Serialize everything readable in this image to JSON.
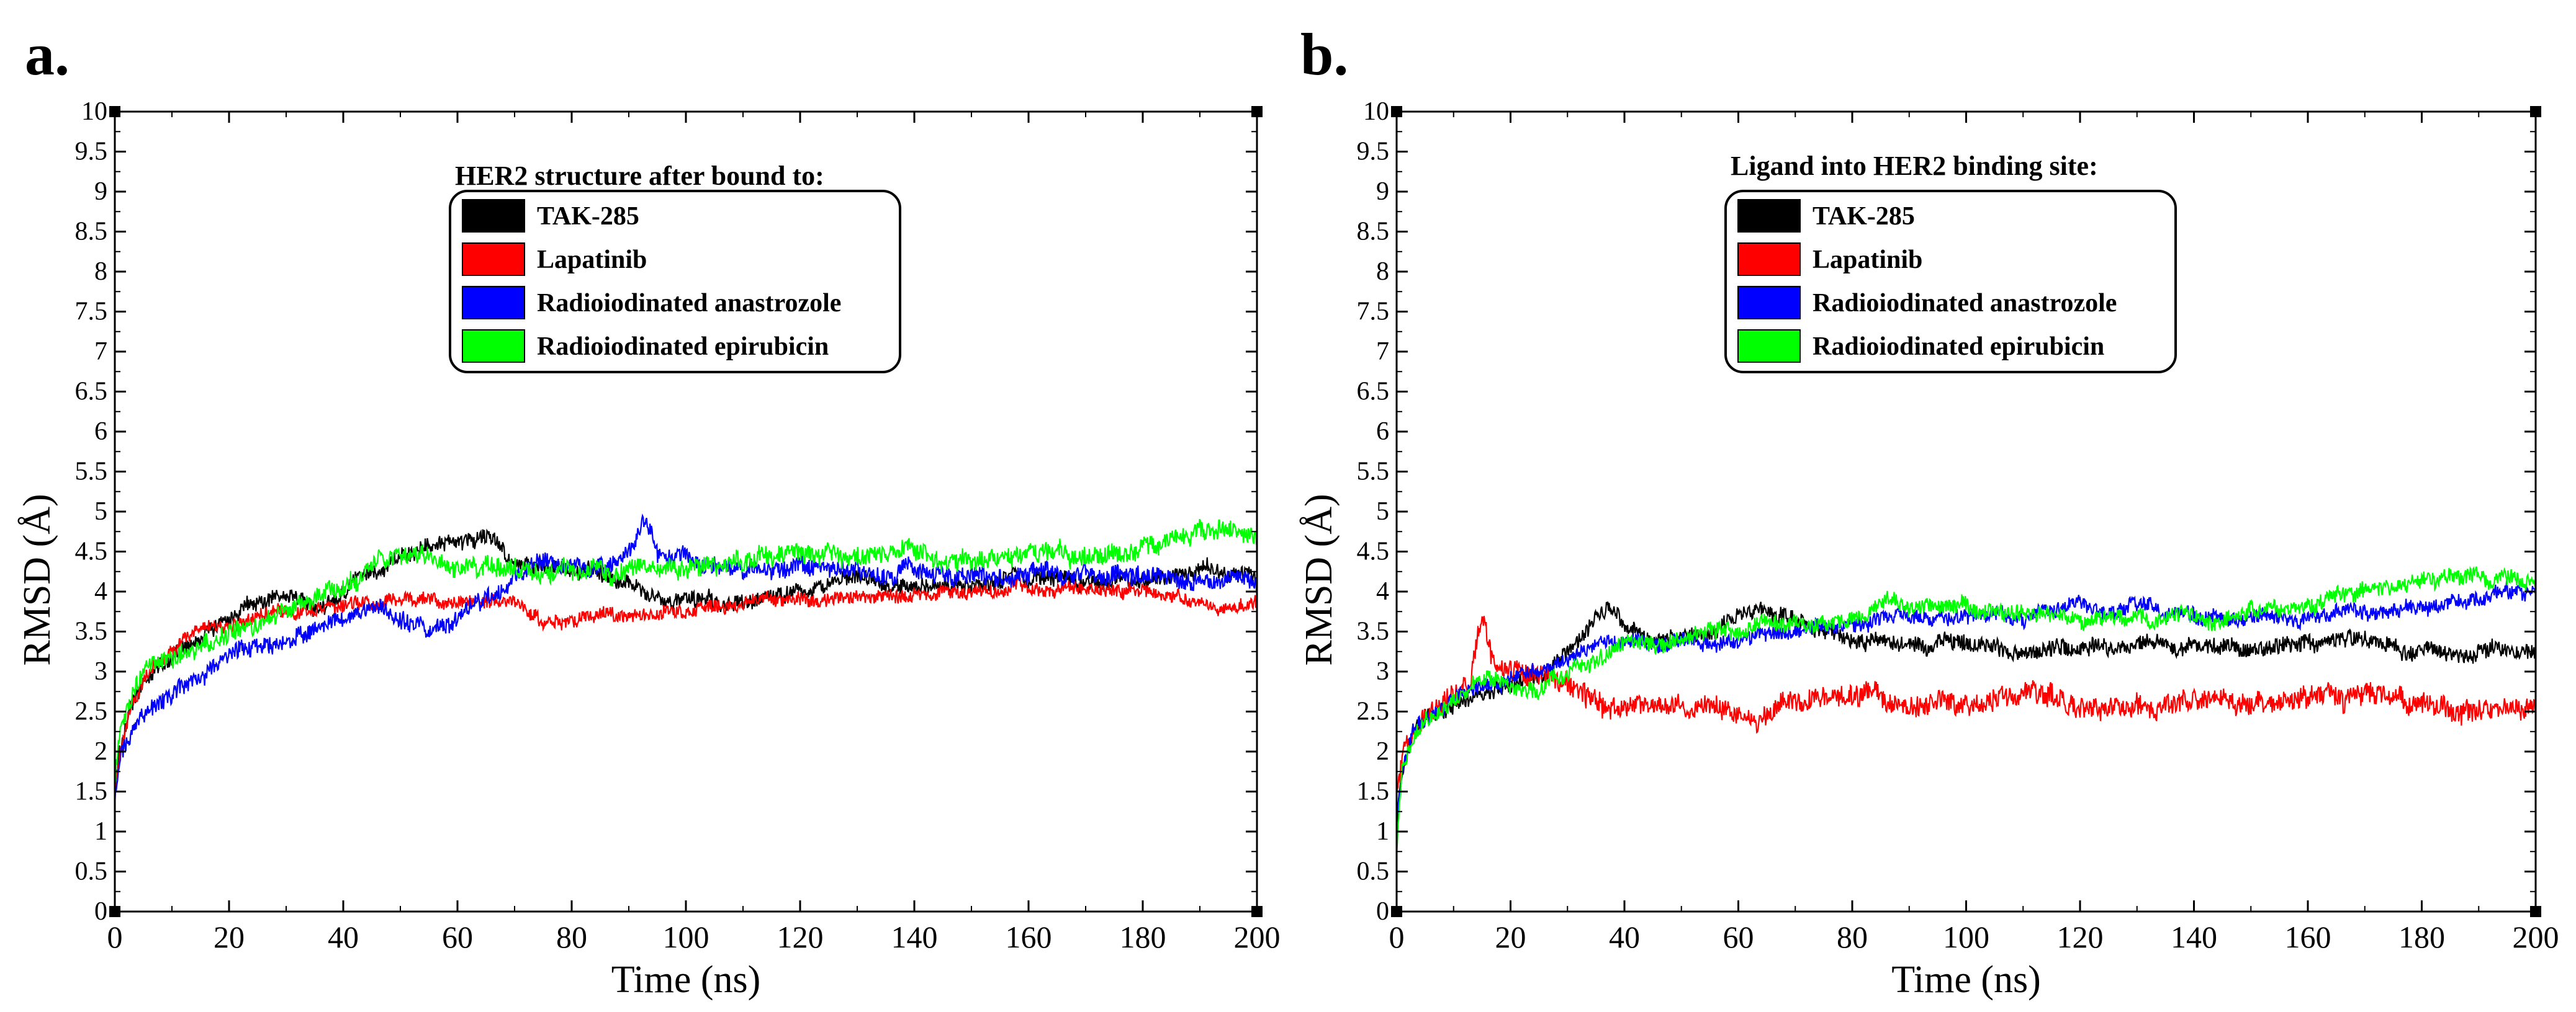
{
  "panels": [
    {
      "label": "a."
    },
    {
      "label": "b."
    }
  ],
  "colors": {
    "TAK-285": "#000000",
    "Lapatinib": "#ff0000",
    "Radioiodinated anastrozole": "#0000ff",
    "Radioiodinated epirubicin": "#00ff00"
  },
  "chart_data": [
    {
      "type": "line",
      "panel": "a.",
      "legend_title": "HER2 structure after bound to:",
      "legend_position": "top-center",
      "xlabel": "Time (ns)",
      "ylabel": "RMSD (Å)",
      "xlim": [
        0,
        200
      ],
      "ylim": [
        0,
        10
      ],
      "xticks": [
        "0",
        "20",
        "40",
        "60",
        "80",
        "100",
        "120",
        "140",
        "160",
        "180",
        "200"
      ],
      "yticks": [
        "0",
        "0.5",
        "1",
        "1.5",
        "2",
        "2.5",
        "3",
        "3.5",
        "4",
        "4.5",
        "5",
        "5.5",
        "6",
        "6.5",
        "7",
        "7.5",
        "8",
        "8.5",
        "9",
        "9.5",
        "10"
      ],
      "series": [
        {
          "name": "TAK-285",
          "color": "#000000",
          "noise": 0.12,
          "points": [
            [
              0,
              1.5
            ],
            [
              1,
              2.1
            ],
            [
              3,
              2.6
            ],
            [
              5,
              2.9
            ],
            [
              10,
              3.2
            ],
            [
              15,
              3.5
            ],
            [
              20,
              3.7
            ],
            [
              25,
              3.9
            ],
            [
              30,
              4.0
            ],
            [
              35,
              3.8
            ],
            [
              40,
              4.0
            ],
            [
              45,
              4.2
            ],
            [
              50,
              4.4
            ],
            [
              55,
              4.6
            ],
            [
              60,
              4.6
            ],
            [
              65,
              4.7
            ],
            [
              70,
              4.3
            ],
            [
              75,
              4.3
            ],
            [
              80,
              4.2
            ],
            [
              85,
              4.3
            ],
            [
              90,
              4.1
            ],
            [
              95,
              4.0
            ],
            [
              100,
              3.9
            ],
            [
              105,
              3.8
            ],
            [
              110,
              3.9
            ],
            [
              115,
              3.9
            ],
            [
              120,
              4.0
            ],
            [
              125,
              4.0
            ],
            [
              130,
              4.1
            ],
            [
              140,
              4.0
            ],
            [
              150,
              4.1
            ],
            [
              160,
              4.2
            ],
            [
              170,
              4.2
            ],
            [
              180,
              4.2
            ],
            [
              190,
              4.3
            ],
            [
              200,
              4.3
            ]
          ]
        },
        {
          "name": "Lapatinib",
          "color": "#ff0000",
          "noise": 0.1,
          "points": [
            [
              0,
              1.5
            ],
            [
              1,
              2.1
            ],
            [
              3,
              2.6
            ],
            [
              5,
              2.9
            ],
            [
              10,
              3.3
            ],
            [
              15,
              3.6
            ],
            [
              20,
              3.6
            ],
            [
              25,
              3.7
            ],
            [
              30,
              3.8
            ],
            [
              40,
              3.8
            ],
            [
              50,
              3.9
            ],
            [
              60,
              3.85
            ],
            [
              70,
              3.9
            ],
            [
              75,
              3.6
            ],
            [
              80,
              3.65
            ],
            [
              85,
              3.7
            ],
            [
              90,
              3.7
            ],
            [
              100,
              3.75
            ],
            [
              110,
              3.8
            ],
            [
              120,
              3.9
            ],
            [
              130,
              3.9
            ],
            [
              140,
              4.0
            ],
            [
              150,
              4.0
            ],
            [
              160,
              4.1
            ],
            [
              170,
              4.1
            ],
            [
              180,
              4.0
            ],
            [
              190,
              3.9
            ],
            [
              200,
              3.9
            ]
          ]
        },
        {
          "name": "Radioiodinated anastrozole",
          "color": "#0000ff",
          "noise": 0.13,
          "points": [
            [
              0,
              1.4
            ],
            [
              1,
              1.9
            ],
            [
              3,
              2.3
            ],
            [
              5,
              2.5
            ],
            [
              10,
              2.7
            ],
            [
              15,
              2.9
            ],
            [
              20,
              3.1
            ],
            [
              25,
              3.3
            ],
            [
              30,
              3.4
            ],
            [
              35,
              3.6
            ],
            [
              40,
              3.7
            ],
            [
              45,
              3.8
            ],
            [
              50,
              3.7
            ],
            [
              55,
              3.5
            ],
            [
              60,
              3.7
            ],
            [
              65,
              3.9
            ],
            [
              70,
              4.2
            ],
            [
              75,
              4.4
            ],
            [
              80,
              4.3
            ],
            [
              85,
              4.3
            ],
            [
              90,
              4.5
            ],
            [
              93,
              4.9
            ],
            [
              95,
              4.5
            ],
            [
              100,
              4.4
            ],
            [
              110,
              4.3
            ],
            [
              120,
              4.3
            ],
            [
              130,
              4.25
            ],
            [
              140,
              4.2
            ],
            [
              150,
              4.2
            ],
            [
              160,
              4.2
            ],
            [
              170,
              4.2
            ],
            [
              180,
              4.2
            ],
            [
              190,
              4.1
            ],
            [
              200,
              4.1
            ]
          ]
        },
        {
          "name": "Radioiodinated epirubicin",
          "color": "#00ff00",
          "noise": 0.14,
          "points": [
            [
              0,
              1.6
            ],
            [
              1,
              2.3
            ],
            [
              3,
              2.7
            ],
            [
              5,
              3.0
            ],
            [
              10,
              3.2
            ],
            [
              15,
              3.4
            ],
            [
              20,
              3.5
            ],
            [
              25,
              3.6
            ],
            [
              30,
              3.7
            ],
            [
              35,
              3.9
            ],
            [
              40,
              4.1
            ],
            [
              45,
              4.3
            ],
            [
              50,
              4.4
            ],
            [
              55,
              4.4
            ],
            [
              60,
              4.3
            ],
            [
              65,
              4.3
            ],
            [
              70,
              4.3
            ],
            [
              80,
              4.2
            ],
            [
              90,
              4.3
            ],
            [
              100,
              4.3
            ],
            [
              110,
              4.4
            ],
            [
              120,
              4.5
            ],
            [
              130,
              4.4
            ],
            [
              140,
              4.4
            ],
            [
              150,
              4.4
            ],
            [
              160,
              4.4
            ],
            [
              170,
              4.45
            ],
            [
              180,
              4.6
            ],
            [
              190,
              4.8
            ],
            [
              200,
              4.6
            ]
          ]
        }
      ]
    },
    {
      "type": "line",
      "panel": "b.",
      "legend_title": "Ligand into HER2 binding site:",
      "legend_position": "top-center",
      "xlabel": "Time (ns)",
      "ylabel": "RMSD (Å)",
      "xlim": [
        0,
        200
      ],
      "ylim": [
        0,
        10
      ],
      "xticks": [
        "0",
        "20",
        "40",
        "60",
        "80",
        "100",
        "120",
        "140",
        "160",
        "180",
        "200"
      ],
      "yticks": [
        "0",
        "0.5",
        "1",
        "1.5",
        "2",
        "2.5",
        "3",
        "3.5",
        "4",
        "4.5",
        "5",
        "5.5",
        "6",
        "6.5",
        "7",
        "7.5",
        "8",
        "8.5",
        "9",
        "9.5",
        "10"
      ],
      "series": [
        {
          "name": "TAK-285",
          "color": "#000000",
          "noise": 0.12,
          "points": [
            [
              0,
              1.1
            ],
            [
              1,
              1.8
            ],
            [
              3,
              2.3
            ],
            [
              5,
              2.5
            ],
            [
              10,
              2.6
            ],
            [
              15,
              2.7
            ],
            [
              20,
              2.8
            ],
            [
              25,
              2.9
            ],
            [
              30,
              3.2
            ],
            [
              35,
              3.6
            ],
            [
              38,
              3.8
            ],
            [
              40,
              3.6
            ],
            [
              45,
              3.4
            ],
            [
              50,
              3.4
            ],
            [
              55,
              3.5
            ],
            [
              60,
              3.6
            ],
            [
              65,
              3.8
            ],
            [
              70,
              3.6
            ],
            [
              80,
              3.4
            ],
            [
              90,
              3.3
            ],
            [
              100,
              3.3
            ],
            [
              110,
              3.3
            ],
            [
              120,
              3.2
            ],
            [
              130,
              3.3
            ],
            [
              140,
              3.3
            ],
            [
              150,
              3.3
            ],
            [
              160,
              3.4
            ],
            [
              170,
              3.4
            ],
            [
              180,
              3.2
            ],
            [
              190,
              3.2
            ],
            [
              200,
              3.3
            ]
          ]
        },
        {
          "name": "Lapatinib",
          "color": "#ff0000",
          "noise": 0.16,
          "points": [
            [
              0,
              1.5
            ],
            [
              2,
              2.2
            ],
            [
              5,
              2.6
            ],
            [
              10,
              2.8
            ],
            [
              13,
              3.0
            ],
            [
              15,
              3.8
            ],
            [
              17,
              3.1
            ],
            [
              20,
              3.0
            ],
            [
              25,
              2.9
            ],
            [
              30,
              2.8
            ],
            [
              35,
              2.6
            ],
            [
              40,
              2.5
            ],
            [
              50,
              2.5
            ],
            [
              60,
              2.55
            ],
            [
              70,
              2.6
            ],
            [
              80,
              2.6
            ],
            [
              90,
              2.6
            ],
            [
              100,
              2.6
            ],
            [
              110,
              2.7
            ],
            [
              120,
              2.6
            ],
            [
              130,
              2.6
            ],
            [
              140,
              2.6
            ],
            [
              150,
              2.6
            ],
            [
              160,
              2.6
            ],
            [
              170,
              2.7
            ],
            [
              180,
              2.6
            ],
            [
              190,
              2.5
            ],
            [
              200,
              2.5
            ]
          ]
        },
        {
          "name": "Radioiodinated anastrozole",
          "color": "#0000ff",
          "noise": 0.11,
          "points": [
            [
              0,
              1.2
            ],
            [
              1,
              1.8
            ],
            [
              3,
              2.3
            ],
            [
              5,
              2.4
            ],
            [
              10,
              2.6
            ],
            [
              15,
              2.8
            ],
            [
              20,
              2.9
            ],
            [
              25,
              3.0
            ],
            [
              30,
              3.2
            ],
            [
              40,
              3.3
            ],
            [
              50,
              3.4
            ],
            [
              60,
              3.4
            ],
            [
              70,
              3.5
            ],
            [
              80,
              3.6
            ],
            [
              90,
              3.7
            ],
            [
              100,
              3.75
            ],
            [
              110,
              3.7
            ],
            [
              120,
              3.85
            ],
            [
              130,
              3.8
            ],
            [
              140,
              3.7
            ],
            [
              150,
              3.7
            ],
            [
              160,
              3.65
            ],
            [
              170,
              3.7
            ],
            [
              180,
              3.8
            ],
            [
              190,
              3.9
            ],
            [
              200,
              4.0
            ]
          ]
        },
        {
          "name": "Radioiodinated epirubicin",
          "color": "#00ff00",
          "noise": 0.12,
          "points": [
            [
              0,
              0.8
            ],
            [
              1,
              1.8
            ],
            [
              3,
              2.2
            ],
            [
              5,
              2.4
            ],
            [
              10,
              2.6
            ],
            [
              15,
              2.8
            ],
            [
              20,
              2.8
            ],
            [
              25,
              2.8
            ],
            [
              30,
              3.0
            ],
            [
              40,
              3.3
            ],
            [
              50,
              3.4
            ],
            [
              60,
              3.5
            ],
            [
              70,
              3.6
            ],
            [
              80,
              3.7
            ],
            [
              90,
              3.75
            ],
            [
              100,
              3.75
            ],
            [
              110,
              3.7
            ],
            [
              120,
              3.7
            ],
            [
              130,
              3.7
            ],
            [
              140,
              3.7
            ],
            [
              150,
              3.7
            ],
            [
              160,
              3.8
            ],
            [
              170,
              4.0
            ],
            [
              180,
              4.1
            ],
            [
              190,
              4.2
            ],
            [
              200,
              4.1
            ]
          ]
        }
      ]
    }
  ]
}
